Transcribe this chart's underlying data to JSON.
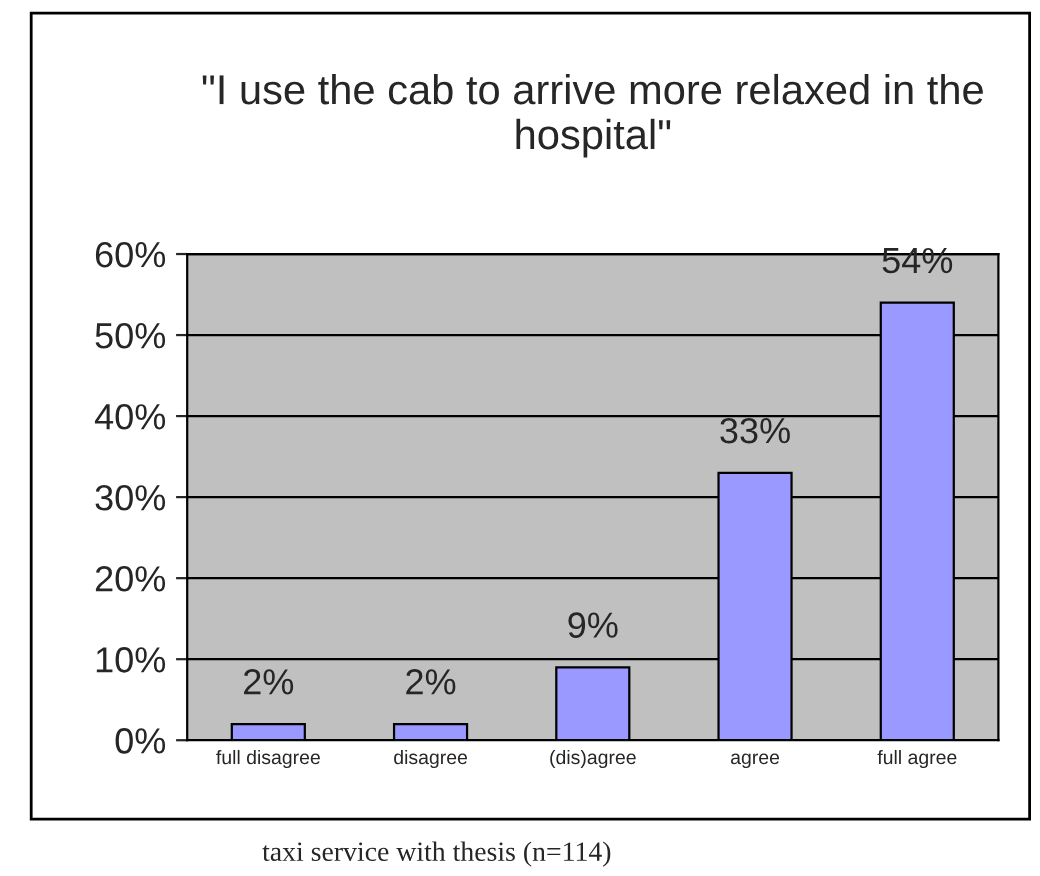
{
  "chart_data": {
    "type": "bar",
    "title": "\"I use the cab to arrive more relaxed in the hospital\"",
    "categories": [
      "full disagree",
      "disagree",
      "(dis)agree",
      "agree",
      "full agree"
    ],
    "values": [
      2,
      2,
      9,
      33,
      54
    ],
    "color": "#9999ff",
    "value_labels": [
      "2%",
      "2%",
      "9%",
      "33%",
      "54%"
    ],
    "ylim": [
      0,
      60
    ],
    "yticks": [
      {
        "value": 0,
        "label": "0%"
      },
      {
        "value": 10,
        "label": "10%"
      },
      {
        "value": 20,
        "label": "20%"
      },
      {
        "value": 30,
        "label": "30%"
      },
      {
        "value": 40,
        "label": "40%"
      },
      {
        "value": 50,
        "label": "50%"
      },
      {
        "value": 60,
        "label": "60%"
      }
    ],
    "grid": "y",
    "legend": false,
    "annotations": [
      "taxi service with thesis (n=114)"
    ]
  }
}
